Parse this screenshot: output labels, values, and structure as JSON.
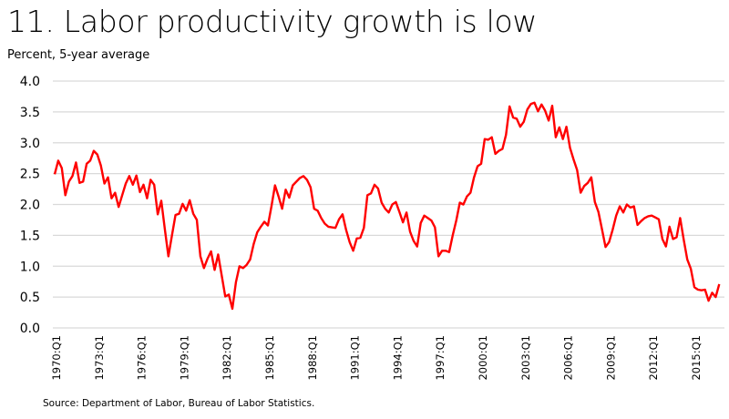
{
  "chart_data": {
    "type": "line",
    "title": "11. Labor productivity growth is low",
    "ylabel": "Percent, 5-year average",
    "xlabel": "",
    "source": "Source: Department of Labor, Bureau of Labor Statistics.",
    "ylim": [
      0,
      4
    ],
    "yticks": [
      "0.0",
      "0.5",
      "1.0",
      "1.5",
      "2.0",
      "2.5",
      "3.0",
      "3.5",
      "4.0"
    ],
    "ytick_values": [
      0,
      0.5,
      1,
      1.5,
      2,
      2.5,
      3,
      3.5,
      4
    ],
    "xticks": [
      "1970:Q1",
      "1973:Q1",
      "1976:Q1",
      "1979:Q1",
      "1982:Q1",
      "1985:Q1",
      "1988:Q1",
      "1991:Q1",
      "1994:Q1",
      "1997:Q1",
      "2000:Q1",
      "2003:Q1",
      "2006:Q1",
      "2009:Q1",
      "2012:Q1",
      "2015:Q1"
    ],
    "xtick_quarter_index": [
      0,
      12,
      24,
      36,
      48,
      60,
      72,
      84,
      96,
      108,
      120,
      132,
      144,
      156,
      168,
      180
    ],
    "x_start": "1970:Q1",
    "x_end": "2016:Q4",
    "grid": true,
    "legend": "none",
    "series": [
      {
        "name": "Labor productivity growth",
        "color": "#ff0000",
        "values": [
          2.49,
          2.71,
          2.59,
          2.15,
          2.37,
          2.46,
          2.68,
          2.35,
          2.37,
          2.66,
          2.71,
          2.87,
          2.81,
          2.63,
          2.34,
          2.44,
          2.1,
          2.19,
          1.96,
          2.15,
          2.34,
          2.46,
          2.32,
          2.47,
          2.2,
          2.32,
          2.1,
          2.4,
          2.32,
          1.84,
          2.06,
          1.6,
          1.16,
          1.5,
          1.83,
          1.85,
          2.01,
          1.9,
          2.07,
          1.85,
          1.75,
          1.16,
          0.97,
          1.12,
          1.24,
          0.94,
          1.19,
          0.85,
          0.51,
          0.54,
          0.31,
          0.74,
          1.0,
          0.97,
          1.02,
          1.11,
          1.36,
          1.55,
          1.64,
          1.72,
          1.66,
          1.97,
          2.31,
          2.13,
          1.93,
          2.24,
          2.11,
          2.31,
          2.37,
          2.43,
          2.46,
          2.4,
          2.28,
          1.93,
          1.9,
          1.78,
          1.69,
          1.64,
          1.63,
          1.62,
          1.76,
          1.84,
          1.59,
          1.39,
          1.25,
          1.45,
          1.46,
          1.62,
          2.15,
          2.18,
          2.32,
          2.26,
          2.03,
          1.93,
          1.87,
          2.0,
          2.04,
          1.88,
          1.71,
          1.87,
          1.56,
          1.41,
          1.32,
          1.7,
          1.82,
          1.78,
          1.74,
          1.63,
          1.16,
          1.25,
          1.25,
          1.23,
          1.5,
          1.74,
          2.03,
          2.0,
          2.13,
          2.19,
          2.44,
          2.62,
          2.66,
          3.06,
          3.05,
          3.09,
          2.82,
          2.87,
          2.9,
          3.13,
          3.59,
          3.41,
          3.39,
          3.26,
          3.34,
          3.54,
          3.63,
          3.65,
          3.51,
          3.62,
          3.52,
          3.36,
          3.6,
          3.09,
          3.25,
          3.06,
          3.26,
          2.92,
          2.73,
          2.56,
          2.19,
          2.3,
          2.35,
          2.44,
          2.04,
          1.88,
          1.6,
          1.31,
          1.39,
          1.59,
          1.82,
          1.97,
          1.87,
          2.0,
          1.95,
          1.97,
          1.67,
          1.73,
          1.78,
          1.81,
          1.82,
          1.79,
          1.76,
          1.44,
          1.32,
          1.64,
          1.44,
          1.47,
          1.78,
          1.43,
          1.11,
          0.96,
          0.66,
          0.62,
          0.61,
          0.62,
          0.44,
          0.57,
          0.5,
          0.71
        ]
      }
    ]
  }
}
